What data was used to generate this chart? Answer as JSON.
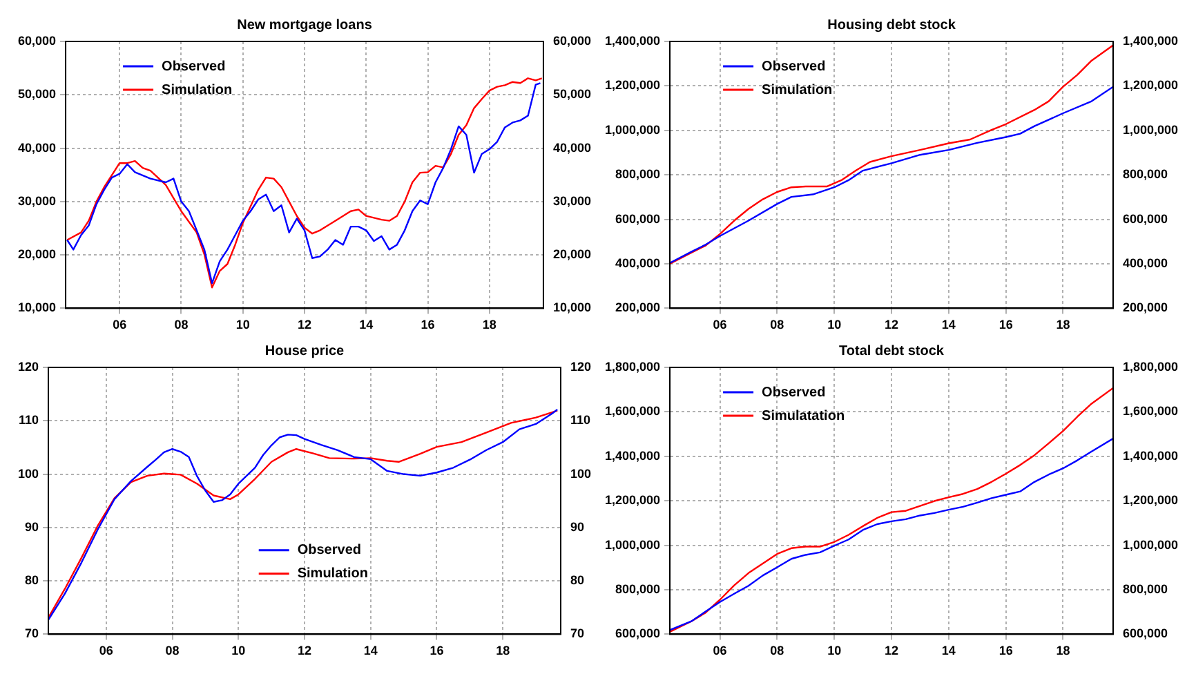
{
  "chart_data": [
    {
      "type": "line",
      "title": "New mortgage loans",
      "xlim": [
        2004.25,
        2019.75
      ],
      "xticks": [
        {
          "value": 2006,
          "label": "06"
        },
        {
          "value": 2008,
          "label": "08"
        },
        {
          "value": 2010,
          "label": "10"
        },
        {
          "value": 2012,
          "label": "12"
        },
        {
          "value": 2014,
          "label": "14"
        },
        {
          "value": 2016,
          "label": "16"
        },
        {
          "value": 2018,
          "label": "18"
        }
      ],
      "ylim": [
        10000,
        60000
      ],
      "yticks": [
        {
          "value": 10000,
          "label": "10,000"
        },
        {
          "value": 20000,
          "label": "20,000"
        },
        {
          "value": 30000,
          "label": "30,000"
        },
        {
          "value": 40000,
          "label": "40,000"
        },
        {
          "value": 50000,
          "label": "50,000"
        },
        {
          "value": 60000,
          "label": "60,000"
        }
      ],
      "y2lim": [
        10000,
        60000
      ],
      "y2ticks": [
        {
          "value": 10000,
          "label": "10,000"
        },
        {
          "value": 20000,
          "label": "20,000"
        },
        {
          "value": 30000,
          "label": "30,000"
        },
        {
          "value": 40000,
          "label": "40,000"
        },
        {
          "value": 50000,
          "label": "50,000"
        },
        {
          "value": 60000,
          "label": "60,000"
        }
      ],
      "grid": true,
      "legend": "top left",
      "series": [
        {
          "name": "Observed",
          "color": "#0000ff",
          "x": [
            2004.3,
            2004.5,
            2004.75,
            2005,
            2005.25,
            2005.5,
            2005.75,
            2006,
            2006.25,
            2006.5,
            2007,
            2007.5,
            2007.75,
            2008,
            2008.25,
            2008.5,
            2008.75,
            2009,
            2009.25,
            2009.5,
            2009.75,
            2010,
            2010.25,
            2010.5,
            2010.75,
            2011,
            2011.25,
            2011.5,
            2011.75,
            2012,
            2012.25,
            2012.5,
            2012.75,
            2013,
            2013.25,
            2013.5,
            2013.75,
            2014,
            2014.25,
            2014.5,
            2014.75,
            2015,
            2015.25,
            2015.5,
            2015.75,
            2016,
            2016.25,
            2016.5,
            2016.75,
            2017,
            2017.25,
            2017.5,
            2017.75,
            2018,
            2018.25,
            2018.5,
            2018.75,
            2019,
            2019.25,
            2019.5,
            2019.65
          ],
          "values": [
            22800,
            21000,
            23700,
            25500,
            29500,
            32200,
            34500,
            35200,
            37000,
            35500,
            34300,
            33600,
            34300,
            30000,
            28200,
            24600,
            21000,
            14700,
            18800,
            21000,
            23700,
            26400,
            28200,
            30400,
            31300,
            28200,
            29300,
            24200,
            26800,
            24600,
            19400,
            19700,
            21000,
            22800,
            21900,
            25300,
            25300,
            24600,
            22600,
            23500,
            21000,
            21900,
            24600,
            28200,
            30200,
            29500,
            33600,
            36300,
            39800,
            44100,
            42500,
            35400,
            38900,
            39800,
            41200,
            43900,
            44800,
            45200,
            46100,
            51900,
            52200
          ]
        },
        {
          "name": "Simulation",
          "color": "#ff0000",
          "x": [
            2004.3,
            2004.75,
            2005,
            2005.25,
            2005.5,
            2006,
            2006.25,
            2006.5,
            2006.75,
            2007,
            2007.5,
            2008,
            2008.5,
            2008.75,
            2009,
            2009.25,
            2009.5,
            2009.75,
            2010,
            2010.5,
            2010.75,
            2011,
            2011.25,
            2011.5,
            2011.75,
            2012,
            2012.25,
            2012.5,
            2013,
            2013.5,
            2013.75,
            2014,
            2014.5,
            2014.75,
            2015,
            2015.25,
            2015.5,
            2015.75,
            2016,
            2016.25,
            2016.5,
            2016.75,
            2017,
            2017.25,
            2017.5,
            2017.75,
            2018,
            2018.25,
            2018.5,
            2018.75,
            2019,
            2019.25,
            2019.5,
            2019.7
          ],
          "values": [
            22800,
            24200,
            26400,
            30000,
            32700,
            37200,
            37200,
            37600,
            36300,
            35800,
            33100,
            28200,
            24200,
            20100,
            13900,
            17000,
            18300,
            21900,
            26000,
            32200,
            34500,
            34300,
            32700,
            30000,
            27300,
            25100,
            24000,
            24600,
            26400,
            28200,
            28500,
            27300,
            26600,
            26400,
            27300,
            30000,
            33600,
            35400,
            35500,
            36700,
            36400,
            38900,
            42500,
            44300,
            47500,
            49200,
            50800,
            51500,
            51800,
            52400,
            52200,
            53100,
            52700,
            53100
          ]
        }
      ]
    },
    {
      "type": "line",
      "title": "Housing debt stock",
      "xlim": [
        2004.25,
        2019.75
      ],
      "xticks": [
        {
          "value": 2006,
          "label": "06"
        },
        {
          "value": 2008,
          "label": "08"
        },
        {
          "value": 2010,
          "label": "10"
        },
        {
          "value": 2012,
          "label": "12"
        },
        {
          "value": 2014,
          "label": "14"
        },
        {
          "value": 2016,
          "label": "16"
        },
        {
          "value": 2018,
          "label": "18"
        }
      ],
      "ylim": [
        200000,
        1400000
      ],
      "yticks": [
        {
          "value": 200000,
          "label": "200,000"
        },
        {
          "value": 400000,
          "label": "400,000"
        },
        {
          "value": 600000,
          "label": "600,000"
        },
        {
          "value": 800000,
          "label": "800,000"
        },
        {
          "value": 1000000,
          "label": "1,000,000"
        },
        {
          "value": 1200000,
          "label": "1,200,000"
        },
        {
          "value": 1400000,
          "label": "1,400,000"
        }
      ],
      "y2lim": [
        200000,
        1400000
      ],
      "y2ticks": [
        {
          "value": 200000,
          "label": "200,000"
        },
        {
          "value": 400000,
          "label": "400,000"
        },
        {
          "value": 600000,
          "label": "600,000"
        },
        {
          "value": 800000,
          "label": "800,000"
        },
        {
          "value": 1000000,
          "label": "1,000,000"
        },
        {
          "value": 1200000,
          "label": "1,200,000"
        },
        {
          "value": 1400000,
          "label": "1,400,000"
        }
      ],
      "grid": true,
      "legend": "top left",
      "series": [
        {
          "name": "Observed",
          "color": "#0000ff",
          "x": [
            2004.25,
            2005,
            2005.5,
            2006,
            2007,
            2008,
            2008.5,
            2009.25,
            2010,
            2010.5,
            2011,
            2012,
            2013,
            2014,
            2015,
            2016,
            2016.5,
            2017,
            2018,
            2019,
            2019.75
          ],
          "values": [
            404000,
            454000,
            486000,
            525000,
            594000,
            669000,
            701000,
            712000,
            744000,
            776000,
            819000,
            852000,
            890000,
            912000,
            944000,
            970000,
            985000,
            1019000,
            1077000,
            1131000,
            1196000
          ]
        },
        {
          "name": "Simulation",
          "color": "#ff0000",
          "x": [
            2004.25,
            2005,
            2005.5,
            2006,
            2006.5,
            2007,
            2007.5,
            2008,
            2008.5,
            2009,
            2009.75,
            2010.25,
            2010.75,
            2011.25,
            2012,
            2013,
            2014,
            2014.75,
            2015.5,
            2016,
            2017,
            2017.5,
            2018,
            2018.5,
            2019,
            2019.75
          ],
          "values": [
            400000,
            450000,
            482000,
            534000,
            594000,
            647000,
            690000,
            723000,
            744000,
            748000,
            748000,
            776000,
            819000,
            858000,
            884000,
            912000,
            942000,
            959000,
            1002000,
            1028000,
            1092000,
            1131000,
            1196000,
            1250000,
            1314000,
            1383000
          ]
        }
      ]
    },
    {
      "type": "line",
      "title": "House price",
      "xlim": [
        2004.25,
        2019.75
      ],
      "xticks": [
        {
          "value": 2006,
          "label": "06"
        },
        {
          "value": 2008,
          "label": "08"
        },
        {
          "value": 2010,
          "label": "10"
        },
        {
          "value": 2012,
          "label": "12"
        },
        {
          "value": 2014,
          "label": "14"
        },
        {
          "value": 2016,
          "label": "16"
        },
        {
          "value": 2018,
          "label": "18"
        }
      ],
      "ylim": [
        70,
        120
      ],
      "yticks": [
        70,
        80,
        90,
        100,
        110,
        120
      ],
      "y2lim": [
        70,
        120
      ],
      "y2ticks": [
        70,
        80,
        90,
        100,
        110,
        120
      ],
      "grid": true,
      "legend": "bottom",
      "series": [
        {
          "name": "Observed",
          "color": "#0000ff",
          "x": [
            2004.25,
            2004.75,
            2005.25,
            2005.75,
            2006.25,
            2006.75,
            2007.25,
            2007.5,
            2007.75,
            2008,
            2008.25,
            2008.5,
            2008.75,
            2009,
            2009.25,
            2009.5,
            2009.75,
            2010,
            2010.5,
            2010.75,
            2011,
            2011.25,
            2011.5,
            2011.75,
            2012,
            2012.5,
            2013,
            2013.5,
            2014,
            2014.5,
            2015,
            2015.5,
            2016,
            2016.5,
            2017,
            2017.5,
            2018,
            2018.5,
            2019,
            2019.5,
            2019.65
          ],
          "values": [
            72.7,
            77.6,
            83.4,
            89.7,
            95.3,
            98.7,
            101.4,
            102.7,
            104.1,
            104.7,
            104.2,
            103.2,
            99.6,
            96.9,
            94.8,
            95.1,
            96.2,
            98.2,
            101.2,
            103.6,
            105.4,
            106.9,
            107.4,
            107.3,
            106.6,
            105.5,
            104.5,
            103.2,
            102.8,
            100.6,
            100,
            99.7,
            100.3,
            101.2,
            102.7,
            104.5,
            106,
            108.4,
            109.4,
            111.4,
            112.1
          ]
        },
        {
          "name": "Simulation",
          "color": "#ff0000",
          "x": [
            2004.25,
            2004.75,
            2005.25,
            2005.75,
            2006.25,
            2006.75,
            2007.25,
            2007.75,
            2008.25,
            2008.75,
            2009.25,
            2009.75,
            2010,
            2010.5,
            2011,
            2011.5,
            2011.75,
            2012.25,
            2012.75,
            2013.5,
            2014,
            2014.5,
            2014.85,
            2015.5,
            2016,
            2016.75,
            2017.5,
            2018.25,
            2019,
            2019.65
          ],
          "values": [
            73.1,
            78.5,
            84.3,
            90.4,
            95.5,
            98.5,
            99.7,
            100.1,
            99.9,
            98.2,
            96,
            95.3,
            96.2,
            99.1,
            102.3,
            104.1,
            104.7,
            103.9,
            103,
            102.9,
            103,
            102.5,
            102.3,
            103.8,
            105.1,
            106,
            107.8,
            109.6,
            110.6,
            111.9
          ]
        }
      ]
    },
    {
      "type": "line",
      "title": "Total debt stock",
      "xlim": [
        2004.25,
        2019.75
      ],
      "xticks": [
        {
          "value": 2006,
          "label": "06"
        },
        {
          "value": 2008,
          "label": "08"
        },
        {
          "value": 2010,
          "label": "10"
        },
        {
          "value": 2012,
          "label": "12"
        },
        {
          "value": 2014,
          "label": "14"
        },
        {
          "value": 2016,
          "label": "16"
        },
        {
          "value": 2018,
          "label": "18"
        }
      ],
      "ylim": [
        600000,
        1800000
      ],
      "yticks": [
        {
          "value": 600000,
          "label": "600,000"
        },
        {
          "value": 800000,
          "label": "800,000"
        },
        {
          "value": 1000000,
          "label": "1,000,000"
        },
        {
          "value": 1200000,
          "label": "1,200,000"
        },
        {
          "value": 1400000,
          "label": "1,400,000"
        },
        {
          "value": 1600000,
          "label": "1,600,000"
        },
        {
          "value": 1800000,
          "label": "1,800,000"
        }
      ],
      "y2lim": [
        600000,
        1800000
      ],
      "y2ticks": [
        {
          "value": 600000,
          "label": "600,000"
        },
        {
          "value": 800000,
          "label": "800,000"
        },
        {
          "value": 1000000,
          "label": "1,000,000"
        },
        {
          "value": 1200000,
          "label": "1,200,000"
        },
        {
          "value": 1400000,
          "label": "1,400,000"
        },
        {
          "value": 1600000,
          "label": "1,600,000"
        },
        {
          "value": 1800000,
          "label": "1,800,000"
        }
      ],
      "grid": true,
      "legend": "top left",
      "series": [
        {
          "name": "Observed",
          "color": "#0000ff",
          "x": [
            2004.25,
            2005,
            2005.5,
            2006,
            2006.5,
            2007,
            2007.5,
            2008,
            2008.5,
            2009,
            2009.5,
            2010,
            2010.5,
            2011,
            2011.5,
            2012,
            2012.5,
            2013,
            2013.5,
            2014,
            2014.5,
            2015,
            2015.5,
            2016,
            2016.5,
            2017,
            2017.5,
            2018,
            2018.5,
            2019,
            2019.75
          ],
          "values": [
            619000,
            658000,
            702000,
            745000,
            782000,
            818000,
            864000,
            901000,
            939000,
            957000,
            968000,
            998000,
            1026000,
            1069000,
            1095000,
            1108000,
            1117000,
            1134000,
            1145000,
            1160000,
            1173000,
            1192000,
            1212000,
            1227000,
            1242000,
            1285000,
            1318000,
            1346000,
            1382000,
            1422000,
            1480000
          ]
        },
        {
          "name": "Simulatation",
          "color": "#ff0000",
          "x": [
            2004.25,
            2005,
            2005.5,
            2006,
            2006.5,
            2007,
            2007.5,
            2008,
            2008.5,
            2009,
            2009.5,
            2010,
            2010.5,
            2011,
            2011.5,
            2012,
            2012.5,
            2013,
            2013.5,
            2014,
            2014.5,
            2015,
            2015.5,
            2016,
            2016.5,
            2017,
            2017.5,
            2018,
            2018.5,
            2019,
            2019.75
          ],
          "values": [
            611000,
            658000,
            697000,
            755000,
            820000,
            875000,
            918000,
            961000,
            987000,
            994000,
            994000,
            1015000,
            1047000,
            1086000,
            1123000,
            1149000,
            1155000,
            1177000,
            1199000,
            1216000,
            1231000,
            1253000,
            1285000,
            1322000,
            1361000,
            1405000,
            1459000,
            1514000,
            1578000,
            1637000,
            1707000
          ]
        }
      ]
    }
  ]
}
